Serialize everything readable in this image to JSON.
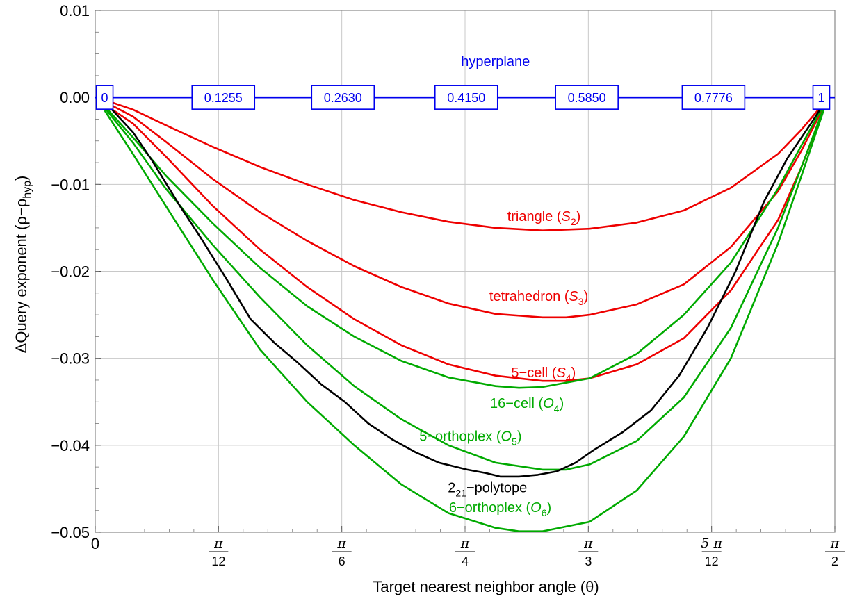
{
  "chart_data": {
    "type": "line",
    "xlabel": "Target nearest neighbor angle (θ)",
    "ylabel": "ΔQuery exponent (ρ−ρhyp)",
    "ylim": [
      -0.05,
      0.01
    ],
    "xlim": [
      0,
      1.5708
    ],
    "grid": true,
    "y_ticks": [
      0.01,
      0.0,
      -0.01,
      -0.02,
      -0.03,
      -0.04,
      -0.05
    ],
    "y_tick_labels": [
      "0.01",
      "0.00",
      "−0.01",
      "−0.02",
      "−0.03",
      "−0.04",
      "−0.05"
    ],
    "x_tick_labels": [
      {
        "value": 0,
        "label": "0"
      },
      {
        "value": 0.2618,
        "numerator": "π",
        "denominator": "12"
      },
      {
        "value": 0.5236,
        "numerator": "π",
        "denominator": "6"
      },
      {
        "value": 0.7854,
        "numerator": "π",
        "denominator": "4"
      },
      {
        "value": 1.0472,
        "numerator": "π",
        "denominator": "3"
      },
      {
        "value": 1.309,
        "numerator": "5 π",
        "denominator": "12"
      },
      {
        "value": 1.5708,
        "numerator": "π",
        "denominator": "2"
      }
    ],
    "hyperplane": {
      "label": "hyperplane",
      "color": "#0000ee",
      "y": 0.0,
      "markers": [
        {
          "x": 0.02,
          "text": "0"
        },
        {
          "x": 0.272,
          "text": "0.1255"
        },
        {
          "x": 0.526,
          "text": "0.2630"
        },
        {
          "x": 0.788,
          "text": "0.4150"
        },
        {
          "x": 1.044,
          "text": "0.5850"
        },
        {
          "x": 1.313,
          "text": "0.7776"
        },
        {
          "x": 1.542,
          "text": "1"
        }
      ]
    },
    "series": [
      {
        "name": "triangle (S2)",
        "label_main": "triangle (",
        "label_sub_symbol": "S",
        "label_sub": "2",
        "label_end": ")",
        "color": "#ee0000",
        "label_at": [
          0.953,
          -0.0142
        ],
        "x": [
          0.02,
          0.08,
          0.15,
          0.25,
          0.35,
          0.45,
          0.55,
          0.65,
          0.75,
          0.85,
          0.95,
          1.0,
          1.05,
          1.15,
          1.25,
          1.35,
          1.45,
          1.5,
          1.55
        ],
        "y": [
          -0.0003,
          -0.0014,
          -0.0032,
          -0.0057,
          -0.008,
          -0.01,
          -0.0118,
          -0.0132,
          -0.0143,
          -0.015,
          -0.0153,
          -0.0152,
          -0.0151,
          -0.0144,
          -0.013,
          -0.0104,
          -0.0065,
          -0.0037,
          -0.0005
        ]
      },
      {
        "name": "tetrahedron (S3)",
        "label_main": "tetrahedron (",
        "label_sub_symbol": "S",
        "label_sub": "3",
        "label_end": ")",
        "color": "#ee0000",
        "label_at": [
          0.942,
          -0.0234
        ],
        "x": [
          0.02,
          0.08,
          0.15,
          0.25,
          0.35,
          0.45,
          0.55,
          0.65,
          0.75,
          0.85,
          0.95,
          1.0,
          1.05,
          1.15,
          1.25,
          1.35,
          1.45,
          1.5,
          1.55
        ],
        "y": [
          -0.0005,
          -0.0022,
          -0.0051,
          -0.0094,
          -0.0132,
          -0.0165,
          -0.0194,
          -0.0218,
          -0.0237,
          -0.0249,
          -0.0253,
          -0.0253,
          -0.025,
          -0.0238,
          -0.0215,
          -0.0172,
          -0.0108,
          -0.0061,
          -0.0008
        ]
      },
      {
        "name": "5-cell (S4)",
        "label_main": "5−cell (",
        "label_sub_symbol": "S",
        "label_sub": "4",
        "label_end": ")",
        "color": "#ee0000",
        "label_at": [
          0.952,
          -0.0322
        ],
        "x": [
          0.02,
          0.08,
          0.15,
          0.25,
          0.35,
          0.45,
          0.55,
          0.65,
          0.75,
          0.85,
          0.95,
          1.0,
          1.05,
          1.15,
          1.25,
          1.35,
          1.45,
          1.5,
          1.55
        ],
        "y": [
          -0.0008,
          -0.003,
          -0.0068,
          -0.0125,
          -0.0175,
          -0.0218,
          -0.0255,
          -0.0285,
          -0.0307,
          -0.032,
          -0.0326,
          -0.0326,
          -0.0323,
          -0.0307,
          -0.0277,
          -0.0222,
          -0.0141,
          -0.008,
          -0.001
        ]
      },
      {
        "name": "16-cell (O4)",
        "label_main": "16−cell (",
        "label_sub_symbol": "O",
        "label_sub": "4",
        "label_end": ")",
        "color": "#00aa00",
        "label_at": [
          0.917,
          -0.0357
        ],
        "x": [
          0.02,
          0.08,
          0.15,
          0.25,
          0.35,
          0.45,
          0.55,
          0.65,
          0.75,
          0.85,
          0.9,
          0.95,
          1.05,
          1.15,
          1.25,
          1.35,
          1.45,
          1.5,
          1.55
        ],
        "y": [
          -0.001,
          -0.0046,
          -0.009,
          -0.0145,
          -0.0196,
          -0.024,
          -0.0275,
          -0.0303,
          -0.0322,
          -0.0332,
          -0.0334,
          -0.0333,
          -0.0323,
          -0.0295,
          -0.025,
          -0.019,
          -0.0105,
          -0.0055,
          -0.0006
        ]
      },
      {
        "name": "5-orthoplex (O5)",
        "label_main": "5−orthoplex (",
        "label_sub_symbol": "O",
        "label_sub": "5",
        "label_end": ")",
        "color": "#00aa00",
        "label_at": [
          0.797,
          -0.0395
        ],
        "x": [
          0.02,
          0.08,
          0.15,
          0.25,
          0.35,
          0.45,
          0.55,
          0.65,
          0.75,
          0.85,
          0.95,
          1.0,
          1.05,
          1.15,
          1.25,
          1.35,
          1.45,
          1.5,
          1.55
        ],
        "y": [
          -0.0012,
          -0.0052,
          -0.0105,
          -0.017,
          -0.023,
          -0.0285,
          -0.0332,
          -0.037,
          -0.04,
          -0.042,
          -0.0428,
          -0.0428,
          -0.0422,
          -0.0395,
          -0.0345,
          -0.0265,
          -0.015,
          -0.008,
          -0.0008
        ]
      },
      {
        "name": "6-orthoplex (O6)",
        "label_main": "6−orthoplex (",
        "label_sub_symbol": "O",
        "label_sub": "6",
        "label_end": ")",
        "color": "#00aa00",
        "label_at": [
          0.86,
          -0.0477
        ],
        "x": [
          0.02,
          0.08,
          0.15,
          0.25,
          0.35,
          0.45,
          0.55,
          0.65,
          0.75,
          0.85,
          0.9,
          0.95,
          1.05,
          1.15,
          1.25,
          1.35,
          1.45,
          1.5,
          1.55
        ],
        "y": [
          -0.0015,
          -0.0065,
          -0.0125,
          -0.021,
          -0.029,
          -0.035,
          -0.04,
          -0.0445,
          -0.0478,
          -0.0495,
          -0.0499,
          -0.0499,
          -0.0488,
          -0.0452,
          -0.039,
          -0.03,
          -0.0168,
          -0.009,
          -0.001
        ]
      },
      {
        "name": "221-polytope",
        "label_main": "2",
        "label_sub_num": "21",
        "label_end": "−polytope",
        "color": "#000000",
        "label_at": [
          0.833,
          -0.0454
        ],
        "x": [
          0.02,
          0.08,
          0.12,
          0.18,
          0.22,
          0.28,
          0.33,
          0.38,
          0.43,
          0.48,
          0.53,
          0.58,
          0.63,
          0.68,
          0.73,
          0.76,
          0.79,
          0.83,
          0.86,
          0.9,
          0.94,
          0.98,
          1.02,
          1.06,
          1.12,
          1.18,
          1.24,
          1.3,
          1.36,
          1.42,
          1.47,
          1.52,
          1.55
        ],
        "y": [
          -0.0005,
          -0.004,
          -0.0072,
          -0.0125,
          -0.0158,
          -0.021,
          -0.0255,
          -0.0282,
          -0.0305,
          -0.033,
          -0.035,
          -0.0375,
          -0.0393,
          -0.0408,
          -0.042,
          -0.0424,
          -0.0428,
          -0.0432,
          -0.0436,
          -0.0436,
          -0.0434,
          -0.043,
          -0.042,
          -0.0405,
          -0.0385,
          -0.036,
          -0.032,
          -0.0265,
          -0.02,
          -0.012,
          -0.007,
          -0.003,
          -0.0005
        ]
      }
    ]
  }
}
